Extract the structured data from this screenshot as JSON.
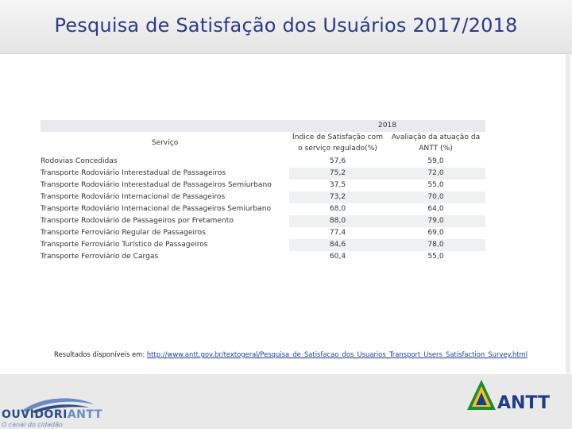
{
  "header": {
    "title": "Pesquisa de Satisfação dos Usuários 2017/2018"
  },
  "table": {
    "year_header": "2018",
    "service_header": "Serviço",
    "index_header": "Índice de Satisfação com o serviço regulado(%)",
    "evaluation_header": "Avaliação da atuação da ANTT (%)",
    "rows": [
      {
        "service": "Rodovias Concedidas",
        "index": "57,6",
        "evaluation": "59,0"
      },
      {
        "service": "Transporte Rodoviário Interestadual de Passageiros",
        "index": "75,2",
        "evaluation": "72,0"
      },
      {
        "service": "Transporte Rodoviário Interestadual de Passageiros Semiurbano",
        "index": "37,5",
        "evaluation": "55,0"
      },
      {
        "service": "Transporte Rodoviário Internacional de Passageiros",
        "index": "73,2",
        "evaluation": "70,0"
      },
      {
        "service": "Transporte Rodoviário Internacional de Passageiros Semiurbano",
        "index": "68,0",
        "evaluation": "64,0"
      },
      {
        "service": "Transporte Rodoviário de Passageiros por Fretamento",
        "index": "88,0",
        "evaluation": "79,0"
      },
      {
        "service": "Transporte Ferroviário Regular de Passageiros",
        "index": "77,4",
        "evaluation": "69,0"
      },
      {
        "service": "Transporte Ferroviário Turístico de Passageiros",
        "index": "84,6",
        "evaluation": "78,0"
      },
      {
        "service": "Transporte Ferroviário de Cargas",
        "index": "60,4",
        "evaluation": "55,0"
      }
    ]
  },
  "results": {
    "label": "Resultados disponíveis em: ",
    "link": "http://www.antt.gov.br/textogeral/Pesquisa_de_Satisfacao_dos_Usuarios_Transport_Users_Satisfaction_Survey.html"
  },
  "footer": {
    "ouvidoria_main": "OUVIDORI",
    "ouvidoria_accent": "ANTT",
    "ouvidoria_sub": "O canal do cidadão",
    "antt_logo_text": "ANTT"
  },
  "colors": {
    "title": "#2c3a87",
    "antt_blue": "#1e3c8c",
    "antt_yellow": "#f4c21a",
    "antt_green": "#1f8a3b"
  }
}
